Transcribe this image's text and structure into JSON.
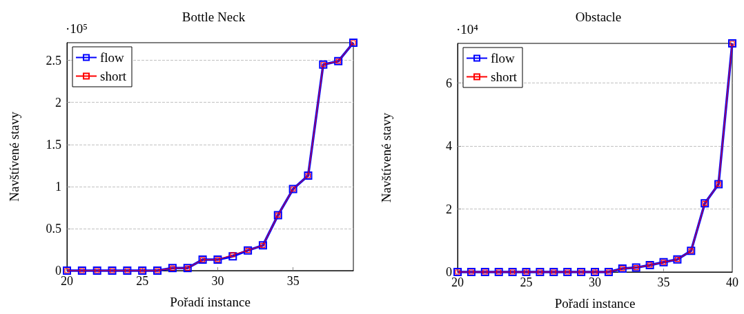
{
  "chart_data": [
    {
      "type": "line",
      "title": "Bottle Neck",
      "xlabel": "Pořadí instance",
      "ylabel": "Navštívené stavy",
      "annotations": [
        "·10⁵"
      ],
      "x": [
        20,
        21,
        22,
        23,
        24,
        25,
        26,
        27,
        28,
        29,
        30,
        31,
        32,
        33,
        34,
        35,
        36,
        37,
        38,
        39
      ],
      "series": [
        {
          "name": "flow",
          "color": "#0000ff",
          "values": [
            0,
            0,
            0,
            0,
            0,
            0,
            0,
            0.03,
            0.03,
            0.13,
            0.13,
            0.17,
            0.24,
            0.3,
            0.66,
            0.97,
            1.13,
            2.45,
            2.49,
            2.71
          ]
        },
        {
          "name": "short",
          "color": "#ff0000",
          "values": [
            0,
            0,
            0,
            0,
            0,
            0,
            0,
            0.03,
            0.03,
            0.13,
            0.13,
            0.19,
            0.24,
            0.3,
            0.66,
            0.97,
            1.13,
            2.45,
            2.49,
            2.71
          ]
        }
      ],
      "xlim": [
        20,
        39
      ],
      "xticks": [
        20,
        25,
        30,
        35
      ],
      "ylim": [
        0,
        2.71
      ],
      "yticks": [
        0,
        0.5,
        1,
        1.5,
        2,
        2.5
      ],
      "grid": "y",
      "legend": "top left",
      "marker": "square",
      "line_style": "solid"
    },
    {
      "type": "line",
      "title": "Obstacle",
      "xlabel": "Pořadí instance",
      "ylabel": "Navštívené stavy",
      "annotations": [
        "·10⁴"
      ],
      "x": [
        20,
        21,
        22,
        23,
        24,
        25,
        26,
        27,
        28,
        29,
        30,
        31,
        32,
        33,
        34,
        35,
        36,
        37,
        38,
        39,
        40
      ],
      "series": [
        {
          "name": "flow",
          "color": "#0000ff",
          "values": [
            0,
            0,
            0,
            0,
            0,
            0,
            0,
            0,
            0,
            0,
            0,
            0,
            0.11,
            0.14,
            0.22,
            0.31,
            0.4,
            0.67,
            2.18,
            2.79,
            7.26
          ]
        },
        {
          "name": "short",
          "color": "#ff0000",
          "values": [
            0,
            0,
            0,
            0,
            0,
            0,
            0,
            0,
            0,
            0,
            0,
            0,
            0.11,
            0.14,
            0.22,
            0.31,
            0.4,
            0.67,
            2.18,
            2.79,
            7.26
          ]
        }
      ],
      "xlim": [
        20,
        40
      ],
      "xticks": [
        20,
        25,
        30,
        35,
        40
      ],
      "ylim": [
        0,
        7.26
      ],
      "yticks": [
        0,
        2,
        4,
        6
      ],
      "grid": "y",
      "legend": "top left",
      "marker": "square",
      "line_style": "solid"
    }
  ]
}
